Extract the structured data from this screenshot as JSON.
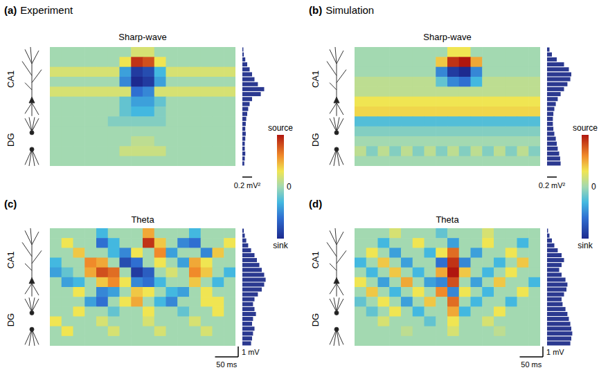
{
  "chart_data": [
    {
      "type": "heatmap",
      "panel": "(a)",
      "column_title": "Experiment",
      "title": "Sharp-wave",
      "region_labels": [
        "CA1",
        "DG"
      ],
      "xlim": [
        0,
        400
      ],
      "ylim": [
        0,
        12
      ],
      "tick_labels": false,
      "cells": [
        [
          0,
          0,
          0,
          0,
          0,
          0,
          0,
          0.2,
          0.2,
          0,
          0,
          0,
          0,
          0,
          0,
          0
        ],
        [
          0,
          0,
          0,
          0,
          0,
          0,
          0.3,
          0.9,
          0.8,
          0.3,
          0,
          0,
          0,
          0,
          0,
          0
        ],
        [
          0.2,
          0.2,
          0.2,
          0.2,
          0.2,
          0.2,
          -0.4,
          -0.9,
          -0.8,
          -0.3,
          0.2,
          0.2,
          0.2,
          0.2,
          0.2,
          0.2
        ],
        [
          0,
          0,
          0,
          0,
          0,
          0,
          -0.5,
          -1,
          -0.9,
          -0.4,
          0,
          0,
          0,
          0,
          0,
          0
        ],
        [
          0.2,
          0.2,
          0.2,
          0.2,
          0.2,
          0.2,
          0.2,
          -0.6,
          -0.5,
          0.2,
          0.2,
          0.2,
          0.2,
          0.2,
          0.2,
          0.2
        ],
        [
          0,
          0,
          0,
          0,
          0,
          0,
          -0.2,
          -0.4,
          -0.4,
          -0.2,
          0,
          0,
          0,
          0,
          0,
          0
        ],
        [
          0,
          0,
          0,
          0,
          0,
          0,
          -0.2,
          -0.3,
          -0.3,
          -0.1,
          0,
          0,
          0,
          0,
          0,
          0
        ],
        [
          0,
          0,
          0,
          0,
          0,
          -0.1,
          -0.1,
          -0.1,
          -0.1,
          -0.1,
          0,
          0,
          0,
          0,
          0,
          0
        ],
        [
          0,
          0,
          0,
          0,
          0,
          0,
          0,
          0,
          0,
          0,
          0,
          0,
          0,
          0,
          0,
          0
        ],
        [
          0,
          0,
          0,
          0,
          0,
          0,
          0,
          0.1,
          0.1,
          0,
          0,
          0,
          0,
          0,
          0,
          0
        ],
        [
          0,
          0,
          0,
          0,
          0,
          0,
          0.15,
          0.15,
          0.15,
          0.15,
          0,
          0,
          0,
          0,
          0,
          0
        ],
        [
          0,
          0,
          0,
          0,
          0,
          0,
          0,
          0,
          0,
          0,
          0,
          0,
          0,
          0,
          0,
          0
        ]
      ],
      "colorbar": {
        "range": [
          -1,
          1
        ],
        "ticks": [
          {
            "value": 1,
            "label": "source"
          },
          0,
          {
            "value": -1,
            "label": "sink"
          }
        ]
      },
      "profile": {
        "type": "bar",
        "orientation": "horizontal",
        "color": "#2b3990",
        "xlim": [
          0,
          0.6
        ],
        "values": [
          0.02,
          0.03,
          0.06,
          0.1,
          0.15,
          0.2,
          0.25,
          0.32,
          0.45,
          0.38,
          0.2,
          0.15,
          0.12,
          0.1,
          0.08,
          0.07,
          0.06,
          0.07,
          0.06,
          0.05,
          0.05,
          0.06,
          0.05,
          0.04
        ],
        "scale_bar": {
          "value": 0.2,
          "label": "0.2 mV²"
        }
      }
    },
    {
      "type": "heatmap",
      "panel": "(b)",
      "column_title": "Simulation",
      "title": "Sharp-wave",
      "region_labels": [
        "CA1",
        "DG"
      ],
      "xlim": [
        0,
        400
      ],
      "ylim": [
        0,
        12
      ],
      "tick_labels": false,
      "cells": [
        [
          0,
          0,
          0,
          0,
          0,
          0,
          0,
          0,
          0.3,
          0.3,
          0,
          0,
          0,
          0,
          0,
          0
        ],
        [
          0,
          0,
          0,
          0,
          0,
          0,
          0,
          0.4,
          0.9,
          1,
          0.5,
          0,
          0,
          0,
          0,
          0
        ],
        [
          0,
          0,
          0,
          0,
          0,
          0,
          0,
          -0.5,
          -0.9,
          -1,
          -0.5,
          0,
          0,
          0,
          0,
          0
        ],
        [
          0.1,
          0.1,
          0.1,
          0.1,
          0.1,
          0.1,
          0.1,
          -0.2,
          -0.5,
          -0.6,
          -0.3,
          0.1,
          0.1,
          0.1,
          0.1,
          0.1
        ],
        [
          0.1,
          0.1,
          0.1,
          0.1,
          0.1,
          0.1,
          0.1,
          0.1,
          0.1,
          0.1,
          0.1,
          0.1,
          0.1,
          0.1,
          0.1,
          0.1
        ],
        [
          0.3,
          0.3,
          0.3,
          0.3,
          0.3,
          0.3,
          0.3,
          0.3,
          0.3,
          0.3,
          0.3,
          0.3,
          0.3,
          0.3,
          0.3,
          0.3
        ],
        [
          0.35,
          0.35,
          0.35,
          0.35,
          0.35,
          0.35,
          0.35,
          0.35,
          0.35,
          0.35,
          0.35,
          0.35,
          0.35,
          0.35,
          0.35,
          0.35
        ],
        [
          -0.25,
          -0.25,
          -0.25,
          -0.25,
          -0.25,
          -0.25,
          -0.25,
          -0.25,
          -0.25,
          -0.25,
          -0.25,
          -0.25,
          -0.25,
          -0.25,
          -0.25,
          -0.25
        ],
        [
          -0.1,
          -0.1,
          -0.1,
          -0.1,
          -0.1,
          -0.1,
          -0.1,
          -0.1,
          -0.1,
          -0.1,
          -0.1,
          -0.1,
          -0.1,
          -0.1,
          -0.1,
          -0.1
        ],
        [
          0,
          0,
          0,
          0,
          0,
          0,
          0,
          0,
          0,
          0,
          0,
          0,
          0,
          0,
          0,
          0
        ],
        [
          0.1,
          -0.1,
          0.1,
          -0.1,
          0.1,
          -0.1,
          0.1,
          -0.1,
          0.1,
          -0.1,
          0.1,
          -0.1,
          0.1,
          -0.1,
          0.1,
          -0.1
        ],
        [
          0,
          0,
          0,
          0,
          0,
          0,
          0,
          0,
          0,
          0,
          0,
          0,
          0,
          0,
          0,
          0
        ]
      ],
      "colorbar": {
        "range": [
          -1,
          1
        ],
        "ticks": [
          {
            "value": 1,
            "label": "source"
          },
          0,
          {
            "value": -1,
            "label": "sink"
          }
        ]
      },
      "profile": {
        "type": "bar",
        "orientation": "horizontal",
        "color": "#2b3990",
        "xlim": [
          0,
          0.6
        ],
        "values": [
          0.05,
          0.1,
          0.2,
          0.35,
          0.45,
          0.5,
          0.48,
          0.42,
          0.35,
          0.28,
          0.22,
          0.18,
          0.15,
          0.13,
          0.12,
          0.12,
          0.13,
          0.15,
          0.18,
          0.2,
          0.22,
          0.25,
          0.27,
          0.28
        ],
        "scale_bar": {
          "value": 0.2,
          "label": "0.2 mV²"
        }
      }
    },
    {
      "type": "heatmap",
      "panel": "(c)",
      "title": "Theta",
      "region_labels": [
        "CA1",
        "DG"
      ],
      "xlim": [
        0,
        400
      ],
      "ylim": [
        0,
        12
      ],
      "tick_labels": false,
      "cells": [
        [
          0,
          0,
          0,
          0,
          -0.3,
          0,
          0,
          0,
          0.5,
          0,
          0,
          0,
          -0.3,
          0,
          0,
          0
        ],
        [
          0,
          0.3,
          0,
          0,
          -0.6,
          -0.3,
          0,
          0,
          0.9,
          0.4,
          0,
          -0.5,
          -0.6,
          0,
          0,
          0.3
        ],
        [
          0,
          0,
          0.4,
          0,
          0,
          -0.3,
          -0.5,
          0.3,
          0,
          0.6,
          -0.4,
          0,
          0,
          -0.5,
          0.4,
          0
        ],
        [
          -0.3,
          0,
          0,
          0.6,
          0.5,
          0,
          -0.8,
          -0.6,
          0,
          0.3,
          0,
          -0.4,
          0.5,
          0.3,
          0,
          0
        ],
        [
          -0.4,
          -0.2,
          0,
          0.5,
          0.8,
          0.7,
          0,
          -0.9,
          -0.7,
          0,
          0.2,
          0,
          0.6,
          0.4,
          0,
          -0.3
        ],
        [
          0,
          -0.4,
          -0.3,
          0,
          0.4,
          0.6,
          0.3,
          -0.5,
          -0.6,
          -0.3,
          0,
          0,
          0.4,
          0,
          -0.3,
          0
        ],
        [
          0,
          0,
          0.3,
          0,
          -0.5,
          -0.4,
          0,
          0.4,
          0.3,
          0,
          -0.3,
          -0.4,
          0,
          0.3,
          0,
          0
        ],
        [
          0,
          0,
          0,
          -0.4,
          -0.6,
          0,
          0.3,
          0.5,
          0,
          -0.3,
          -0.5,
          0,
          0,
          0.3,
          0.3,
          0
        ],
        [
          0,
          0,
          0.3,
          0,
          0,
          -0.2,
          0,
          0,
          0.3,
          0,
          0,
          -0.2,
          0,
          0,
          0.3,
          0
        ],
        [
          0.3,
          0,
          0,
          0,
          0.2,
          0,
          0,
          0,
          0.2,
          0,
          0,
          0,
          0.2,
          0,
          0,
          0
        ],
        [
          0,
          0.3,
          0,
          0,
          0,
          0.2,
          0,
          0,
          0,
          0.2,
          0,
          0,
          0,
          0.2,
          0,
          0
        ],
        [
          0,
          0,
          0,
          0,
          0,
          0,
          0,
          0,
          0,
          0,
          0,
          0,
          0,
          0,
          0,
          0
        ]
      ],
      "profile": {
        "type": "bar",
        "orientation": "horizontal",
        "color": "#2b3990",
        "xlim": [
          0,
          0.6
        ],
        "values": [
          0.03,
          0.05,
          0.08,
          0.12,
          0.18,
          0.25,
          0.3,
          0.35,
          0.4,
          0.45,
          0.48,
          0.45,
          0.4,
          0.32,
          0.25,
          0.22,
          0.25,
          0.28,
          0.22,
          0.2,
          0.25,
          0.22,
          0.2,
          0.18
        ]
      },
      "scale_bars": {
        "x": {
          "value": 50,
          "label": "50 ms"
        },
        "y": {
          "value": 1,
          "label": "1 mV"
        }
      }
    },
    {
      "type": "heatmap",
      "panel": "(d)",
      "title": "Theta",
      "region_labels": [
        "CA1",
        "DG"
      ],
      "xlim": [
        0,
        400
      ],
      "ylim": [
        0,
        12
      ],
      "tick_labels": false,
      "cells": [
        [
          0,
          0,
          0,
          0.2,
          0,
          0,
          0,
          -0.2,
          0,
          0,
          0,
          0.2,
          0,
          0,
          0,
          0
        ],
        [
          0,
          0,
          -0.3,
          0,
          0,
          0.3,
          0,
          0,
          -0.4,
          0,
          0,
          0.3,
          0,
          0,
          -0.3,
          0
        ],
        [
          0,
          0.3,
          0,
          -0.4,
          0,
          0,
          -0.3,
          0.3,
          0.7,
          0,
          -0.4,
          0,
          0,
          0.3,
          0,
          0
        ],
        [
          -0.3,
          0,
          0.4,
          0,
          -0.4,
          0,
          0,
          -0.6,
          0.9,
          -0.5,
          0,
          0,
          -0.3,
          0,
          0.4,
          0
        ],
        [
          0,
          -0.3,
          0,
          0.4,
          0,
          -0.3,
          0,
          0.5,
          1,
          0.4,
          0,
          -0.3,
          0,
          0.3,
          0,
          0
        ],
        [
          0.3,
          0,
          -0.4,
          0,
          0.5,
          0,
          -0.4,
          -0.5,
          0.8,
          0,
          -0.4,
          0,
          0.4,
          0,
          0,
          -0.3
        ],
        [
          0,
          0.4,
          0,
          -0.3,
          0,
          0.3,
          0,
          0.6,
          -0.5,
          0.3,
          0,
          -0.3,
          0,
          0,
          0.3,
          0
        ],
        [
          -0.2,
          0,
          0.3,
          0,
          -0.4,
          0,
          0.4,
          0,
          0.7,
          0,
          -0.3,
          0,
          0,
          -0.3,
          0,
          0
        ],
        [
          0,
          -0.2,
          0,
          0.3,
          0,
          -0.3,
          0,
          0,
          0.5,
          -0.3,
          0,
          0,
          0.3,
          0,
          0,
          0
        ],
        [
          0,
          0,
          0.2,
          0,
          0,
          0,
          -0.2,
          0,
          0.3,
          0,
          0,
          0.2,
          0,
          0,
          0,
          0
        ],
        [
          0,
          0,
          0,
          0,
          0.1,
          0,
          0,
          0,
          0.2,
          0,
          0,
          0,
          0.1,
          0,
          0,
          0
        ],
        [
          0,
          0,
          0,
          0,
          0,
          0,
          0,
          0,
          0,
          0,
          0,
          0,
          0,
          0,
          0,
          0
        ]
      ],
      "profile": {
        "type": "bar",
        "orientation": "horizontal",
        "color": "#2b3990",
        "xlim": [
          0,
          0.6
        ],
        "values": [
          0.02,
          0.05,
          0.1,
          0.15,
          0.22,
          0.3,
          0.35,
          0.3,
          0.25,
          0.3,
          0.38,
          0.42,
          0.4,
          0.35,
          0.3,
          0.32,
          0.38,
          0.42,
          0.45,
          0.48,
          0.5,
          0.52,
          0.5,
          0.48
        ]
      },
      "scale_bars": {
        "x": {
          "value": 50,
          "label": "50 ms"
        },
        "y": {
          "value": 1,
          "label": "1 mV"
        }
      }
    }
  ]
}
